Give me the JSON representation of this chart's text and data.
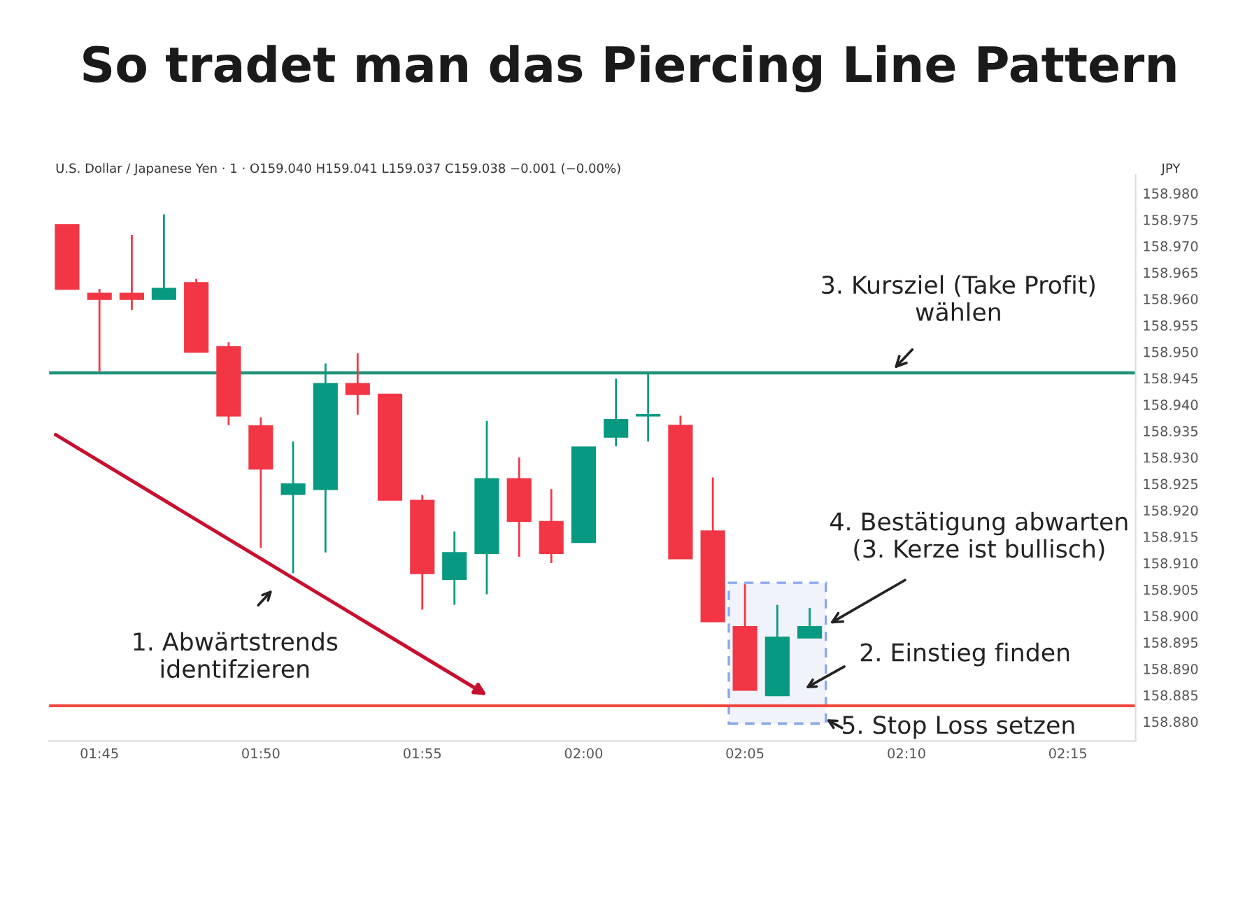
{
  "chart_data": {
    "type": "candlestick",
    "title": "So tradet man das Piercing Line Pattern",
    "subtitle": "U.S. Dollar / Japanese Yen · 1 · O159.040 H159.041 L159.037 C159.038 −0.001 (−0.00%)",
    "ylabel": "JPY",
    "x": [
      1.7333,
      1.75,
      1.7667,
      1.7833,
      1.8,
      1.8167,
      1.8333,
      1.85,
      1.8667,
      1.8833,
      1.9,
      1.9167,
      1.9333,
      1.95,
      1.9667,
      1.9833,
      2.0,
      2.0167,
      2.0333,
      2.05,
      2.0667,
      2.0833,
      2.1,
      2.1167
    ],
    "ohlc": [
      [
        158.974,
        158.974,
        158.9619,
        158.9619
      ],
      [
        158.961,
        158.9619,
        158.9462,
        158.96
      ],
      [
        158.961,
        158.9721,
        158.9579,
        158.96
      ],
      [
        158.96,
        158.976,
        158.96,
        158.9619
      ],
      [
        158.963,
        158.9638,
        158.95,
        158.95
      ],
      [
        158.9509,
        158.9518,
        158.9361,
        158.9379
      ],
      [
        158.9359,
        158.9376,
        158.9129,
        158.9279
      ],
      [
        158.9231,
        158.933,
        158.9081,
        158.9249
      ],
      [
        158.924,
        158.9478,
        158.912,
        158.9439
      ],
      [
        158.9439,
        158.9497,
        158.9381,
        158.942
      ],
      [
        158.9419,
        158.9419,
        158.922,
        158.922
      ],
      [
        158.9218,
        158.9229,
        158.9012,
        158.9081
      ],
      [
        158.907,
        158.916,
        158.9021,
        158.9119
      ],
      [
        158.9119,
        158.9369,
        158.9041,
        158.9259
      ],
      [
        158.9259,
        158.93,
        158.9112,
        158.918
      ],
      [
        158.9178,
        158.924,
        158.91,
        158.9119
      ],
      [
        158.914,
        158.9319,
        158.914,
        158.9319
      ],
      [
        158.9339,
        158.9449,
        158.9321,
        158.9371
      ],
      [
        158.9379,
        158.946,
        158.933,
        158.938
      ],
      [
        158.936,
        158.9379,
        158.9109,
        158.9109
      ],
      [
        158.916,
        158.9262,
        158.899,
        158.899
      ],
      [
        158.8979,
        158.906,
        158.886,
        158.886
      ],
      [
        158.885,
        158.9021,
        158.885,
        158.8959
      ],
      [
        158.8959,
        158.9015,
        158.8959,
        158.8979
      ]
    ],
    "colors": [
      "#f23645",
      "#f23645",
      "#f23645",
      "#089981",
      "#f23645",
      "#f23645",
      "#f23645",
      "#089981",
      "#089981",
      "#f23645",
      "#f23645",
      "#f23645",
      "#089981",
      "#089981",
      "#f23645",
      "#f23645",
      "#089981",
      "#089981",
      "#089981",
      "#f23645",
      "#f23645",
      "#f23645",
      "#089981",
      "#089981"
    ],
    "ref_lines": [
      {
        "axis": "y",
        "value": 158.946,
        "color": "#1f9279"
      },
      {
        "axis": "y",
        "value": 158.883,
        "color": "#f0473f"
      }
    ],
    "annotations": [
      "1. Abwärtstrends\nidentifzieren",
      "2. Einstieg finden",
      {
        "text": "3. Kursziel (Take Profit)\nwählen",
        "x": 2.1583,
        "y": 158.946
      },
      {
        "text": "4. Bestätigung abwarten\n(3. Kerze ist bullisch)",
        "x": 2.1245,
        "y": 158.898
      },
      "5. Stop Loss setzen"
    ],
    "xlim": [
      1.724,
      2.285
    ],
    "ylim": [
      158.8763,
      158.9835
    ],
    "xticks": [
      {
        "value": 1.75,
        "label": "01:45"
      },
      {
        "value": 1.8333,
        "label": "01:50"
      },
      {
        "value": 1.9167,
        "label": "01:55"
      },
      {
        "value": 2.0,
        "label": "02:00"
      },
      {
        "value": 2.0833,
        "label": "02:05"
      },
      {
        "value": 2.1667,
        "label": "02:10"
      },
      {
        "value": 2.25,
        "label": "02:15"
      }
    ],
    "yticks": [
      {
        "value": 158.88,
        "label": "158.880"
      },
      {
        "value": 158.885,
        "label": "158.885"
      },
      {
        "value": 158.89,
        "label": "158.890"
      },
      {
        "value": 158.895,
        "label": "158.895"
      },
      {
        "value": 158.9,
        "label": "158.900"
      },
      {
        "value": 158.905,
        "label": "158.905"
      },
      {
        "value": 158.91,
        "label": "158.910"
      },
      {
        "value": 158.915,
        "label": "158.915"
      },
      {
        "value": 158.92,
        "label": "158.920"
      },
      {
        "value": 158.925,
        "label": "158.925"
      },
      {
        "value": 158.93,
        "label": "158.930"
      },
      {
        "value": 158.935,
        "label": "158.935"
      },
      {
        "value": 158.94,
        "label": "158.940"
      },
      {
        "value": 158.945,
        "label": "158.945"
      },
      {
        "value": 158.95,
        "label": "158.950"
      },
      {
        "value": 158.955,
        "label": "158.955"
      },
      {
        "value": 158.96,
        "label": "158.960"
      },
      {
        "value": 158.965,
        "label": "158.965"
      },
      {
        "value": 158.97,
        "label": "158.970"
      },
      {
        "value": 158.975,
        "label": "158.975"
      },
      {
        "value": 158.98,
        "label": "158.980"
      }
    ],
    "grid": false
  }
}
